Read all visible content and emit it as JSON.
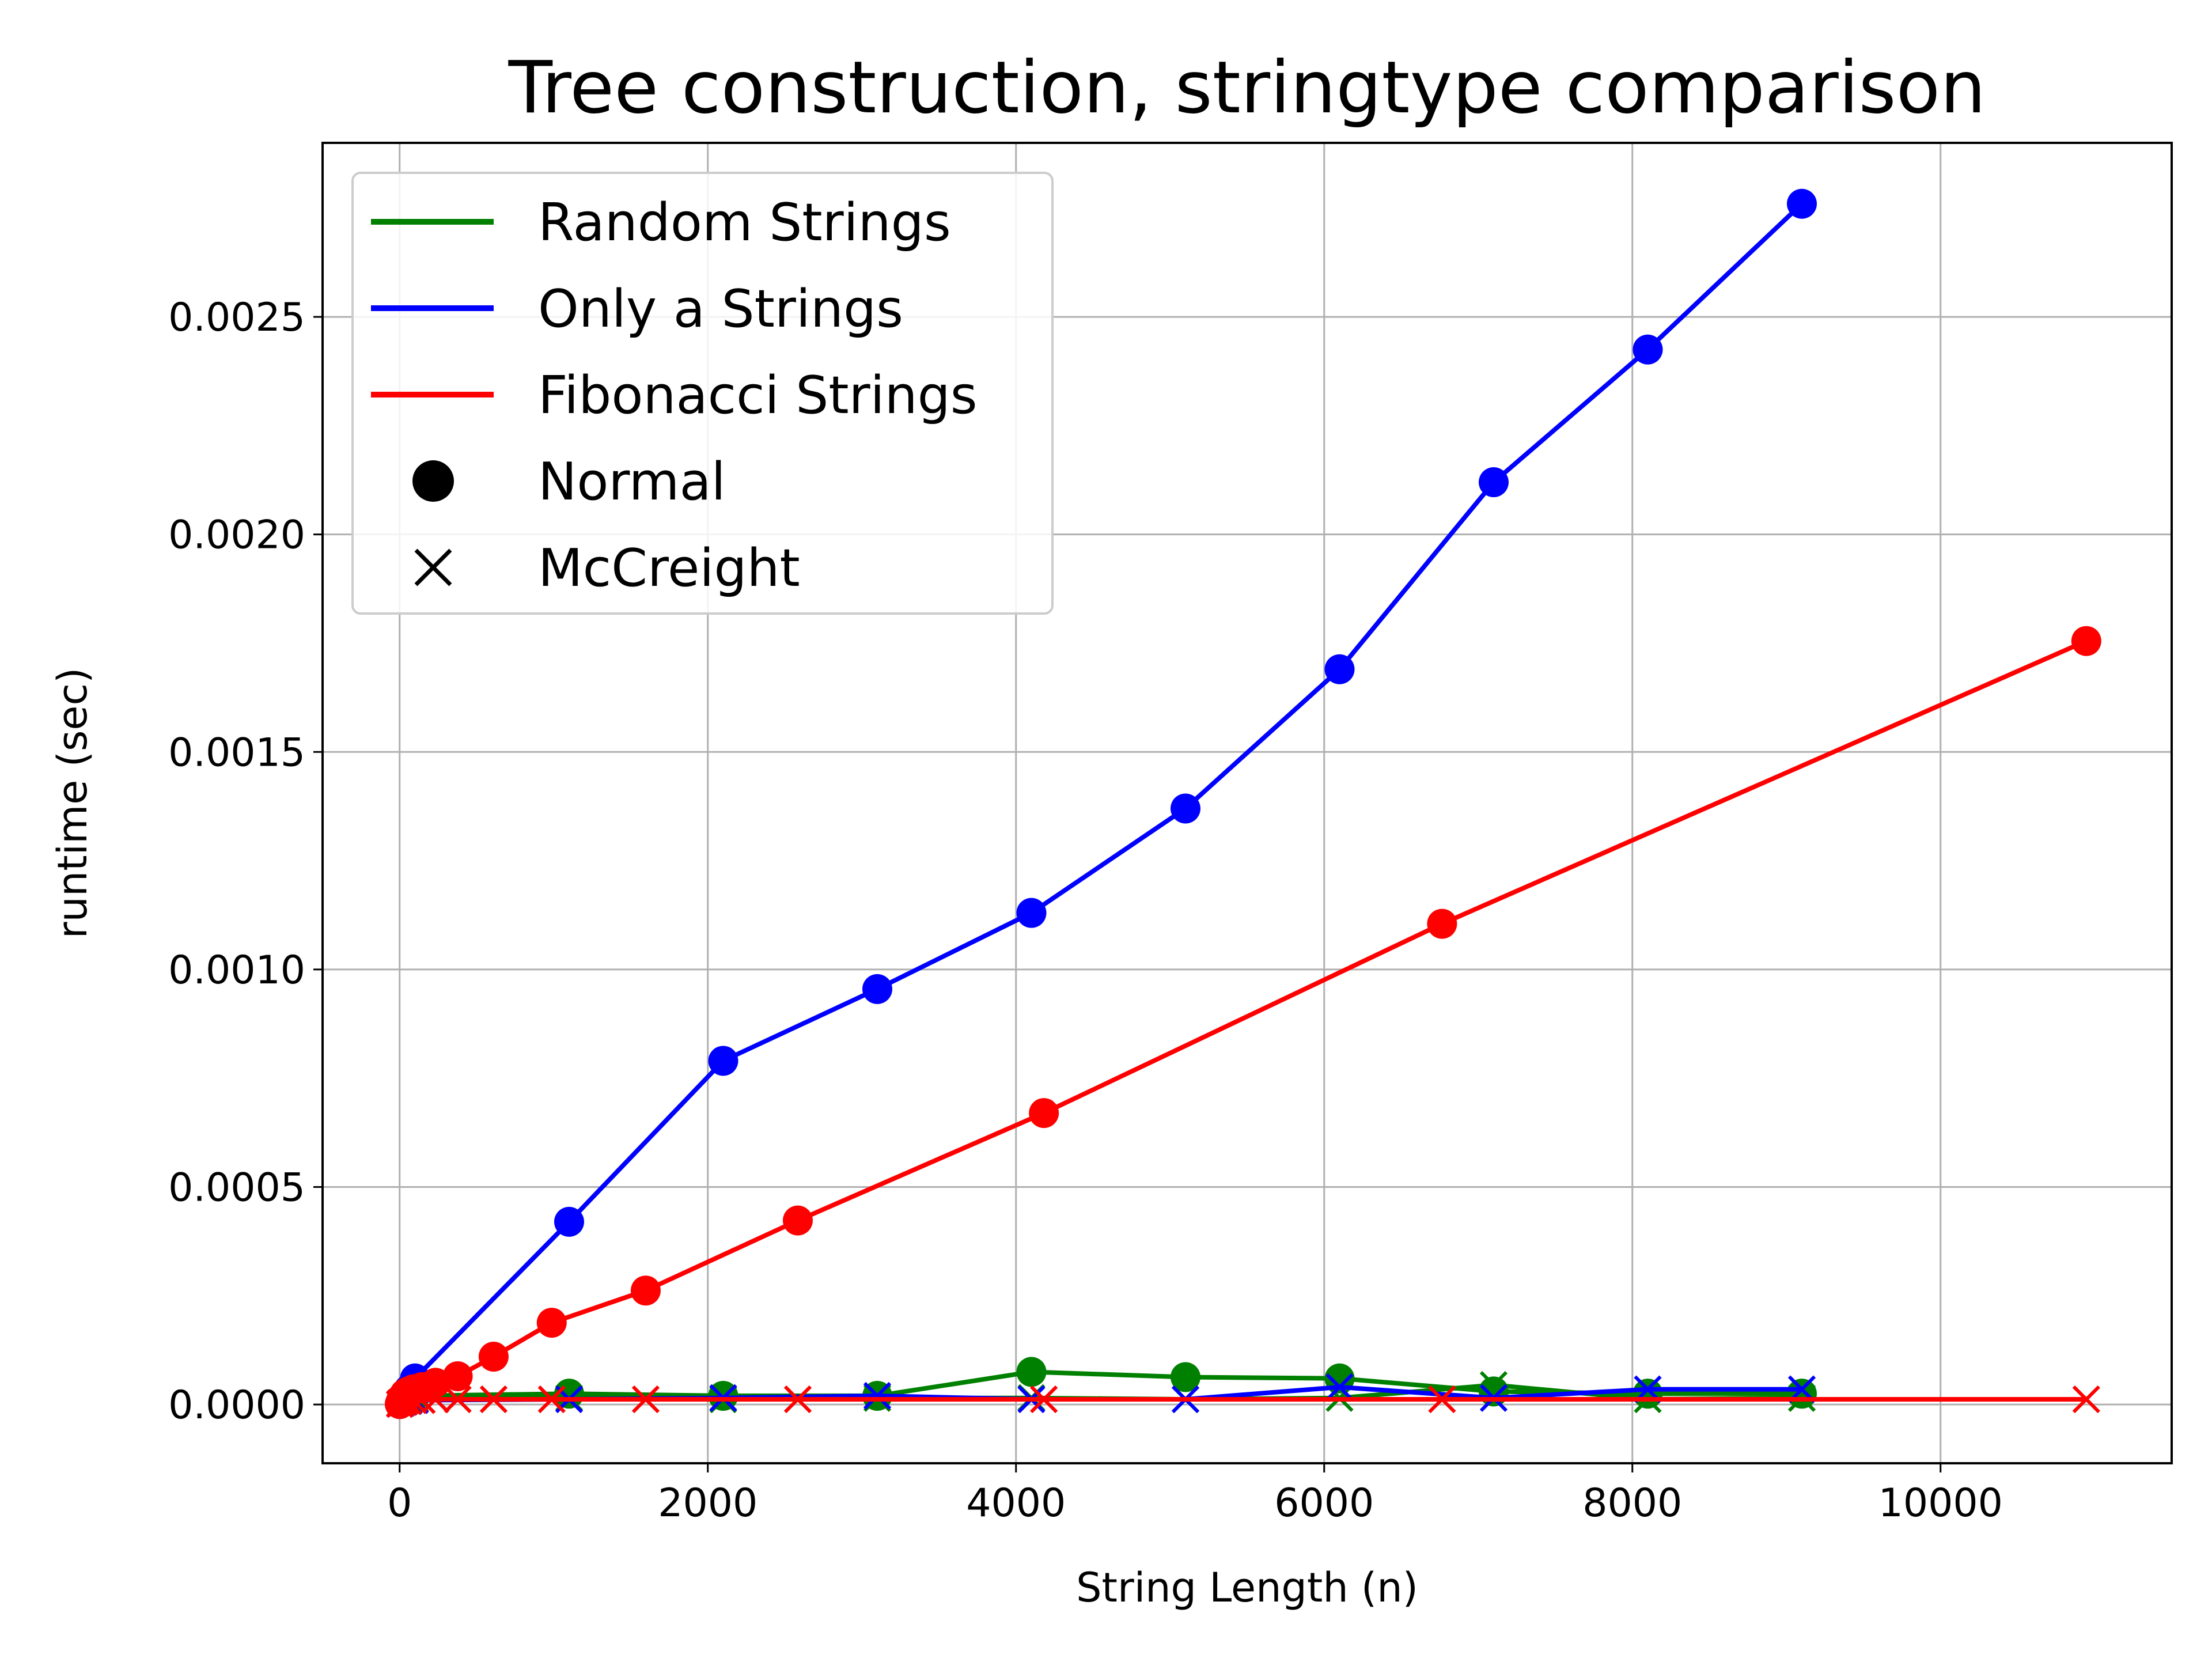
{
  "chart_data": {
    "type": "line",
    "title": "Tree construction, stringtype comparison",
    "xlabel": "String Length (n)",
    "ylabel": "runtime (sec)",
    "xlim": [
      -500,
      11500
    ],
    "ylim": [
      -0.000135,
      0.0029
    ],
    "xticks": [
      0,
      2000,
      4000,
      6000,
      8000,
      10000
    ],
    "xtick_labels": [
      "0",
      "2000",
      "4000",
      "6000",
      "8000",
      "10000"
    ],
    "yticks": [
      0.0,
      0.0005,
      0.001,
      0.0015,
      0.002,
      0.0025
    ],
    "ytick_labels": [
      "0.0000",
      "0.0005",
      "0.0010",
      "0.0015",
      "0.0020",
      "0.0025"
    ],
    "grid": true,
    "legend_position": "top-left",
    "legend": [
      {
        "label": "Random Strings",
        "kind": "line",
        "color": "#008000"
      },
      {
        "label": "Only a Strings",
        "kind": "line",
        "color": "#0000ff"
      },
      {
        "label": "Fibonacci Strings",
        "kind": "line",
        "color": "#ff0000"
      },
      {
        "label": "Normal",
        "kind": "marker-circle",
        "color": "#000000"
      },
      {
        "label": "McCreight",
        "kind": "marker-x",
        "color": "#000000"
      }
    ],
    "series": [
      {
        "type": "Random Strings",
        "algorithm": "Normal",
        "color": "#008000",
        "marker": "circle",
        "x": [
          5,
          15,
          30,
          60,
          100,
          1100,
          2100,
          3100,
          4100,
          5100,
          6100,
          7100,
          8100,
          9100
        ],
        "y": [
          3e-06,
          5e-06,
          8e-06,
          1.2e-05,
          2e-05,
          2.5e-05,
          2e-05,
          2e-05,
          7.5e-05,
          6.3e-05,
          6e-05,
          3e-05,
          2.5e-05,
          2.5e-05
        ]
      },
      {
        "type": "Random Strings",
        "algorithm": "McCreight",
        "color": "#008000",
        "marker": "x",
        "x": [
          5,
          15,
          30,
          60,
          100,
          1100,
          2100,
          3100,
          4100,
          5100,
          6100,
          7100,
          8100,
          9100
        ],
        "y": [
          3e-06,
          5e-06,
          8e-06,
          1.2e-05,
          1.2e-05,
          1.5e-05,
          1.2e-05,
          1.5e-05,
          1.5e-05,
          1.2e-05,
          1.5e-05,
          4.5e-05,
          1.2e-05,
          1.5e-05
        ]
      },
      {
        "type": "Only a Strings",
        "algorithm": "Normal",
        "color": "#0000ff",
        "marker": "circle",
        "x": [
          5,
          15,
          30,
          60,
          100,
          1100,
          2100,
          3100,
          4100,
          5100,
          6100,
          7100,
          8100,
          9100
        ],
        "y": [
          5e-06,
          1e-05,
          2e-05,
          3.5e-05,
          6e-05,
          0.00042,
          0.00079,
          0.000955,
          0.00113,
          0.00137,
          0.00169,
          0.00212,
          0.002425,
          0.00276
        ]
      },
      {
        "type": "Only a Strings",
        "algorithm": "McCreight",
        "color": "#0000ff",
        "marker": "x",
        "x": [
          5,
          15,
          30,
          60,
          100,
          1100,
          2100,
          3100,
          4100,
          5100,
          6100,
          7100,
          8100,
          9100
        ],
        "y": [
          3e-06,
          4e-06,
          6e-06,
          8e-06,
          1e-05,
          1.2e-05,
          1.5e-05,
          2e-05,
          1.2e-05,
          1.2e-05,
          4e-05,
          1.5e-05,
          3.5e-05,
          3.5e-05
        ]
      },
      {
        "type": "Fibonacci Strings",
        "algorithm": "Normal",
        "color": "#ff0000",
        "marker": "circle",
        "x": [
          1,
          2,
          3,
          5,
          8,
          13,
          21,
          34,
          55,
          89,
          144,
          233,
          377,
          610,
          987,
          1597,
          2584,
          4181,
          6765,
          10946
        ],
        "y": [
          1e-06,
          2e-06,
          3e-06,
          5e-06,
          8e-06,
          1.2e-05,
          1.8e-05,
          2.5e-05,
          3e-05,
          3.5e-05,
          4e-05,
          5e-05,
          6.5e-05,
          0.00011,
          0.000188,
          0.000262,
          0.000423,
          0.00067,
          0.001105,
          0.001755
        ]
      },
      {
        "type": "Fibonacci Strings",
        "algorithm": "McCreight",
        "color": "#ff0000",
        "marker": "x",
        "x": [
          1,
          2,
          3,
          5,
          8,
          13,
          21,
          34,
          55,
          89,
          144,
          233,
          377,
          610,
          987,
          1597,
          2584,
          4181,
          6765,
          10946
        ],
        "y": [
          1e-06,
          1e-06,
          2e-06,
          3e-06,
          4e-06,
          5e-06,
          6e-06,
          7e-06,
          8e-06,
          1e-05,
          1e-05,
          1.2e-05,
          1.2e-05,
          1.2e-05,
          1.2e-05,
          1.2e-05,
          1.2e-05,
          1.2e-05,
          1.2e-05,
          1.2e-05
        ]
      }
    ]
  }
}
